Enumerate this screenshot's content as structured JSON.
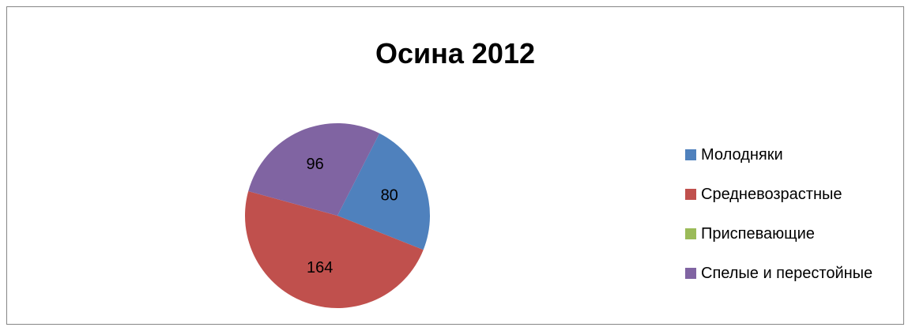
{
  "chart_data": {
    "type": "pie",
    "title": "Осина 2012",
    "categories": [
      "Молодняки",
      "Средневозрастные",
      "Приспевающие",
      "Спелые и перестойные"
    ],
    "values": [
      80,
      164,
      0,
      96
    ],
    "data_labels": [
      "80",
      "164",
      "",
      "96"
    ],
    "colors": [
      "#4F81BD",
      "#C0504D",
      "#9BBB59",
      "#8064A2"
    ],
    "legend_position": "right",
    "start_angle_deg": 27,
    "direction": "clockwise"
  }
}
